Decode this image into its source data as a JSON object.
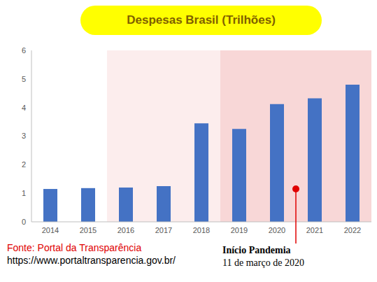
{
  "chart_data": {
    "type": "bar",
    "title": "Despesas Brasil (Trilhões)",
    "categories": [
      "2014",
      "2015",
      "2016",
      "2017",
      "2018",
      "2019",
      "2020",
      "2021",
      "2022"
    ],
    "values": [
      1.15,
      1.18,
      1.2,
      1.25,
      3.45,
      3.25,
      4.12,
      4.32,
      4.8
    ],
    "color": "#4472c4",
    "ylim": [
      0,
      6
    ],
    "yticks": [
      0,
      1,
      2,
      3,
      4,
      5,
      6
    ],
    "grid": false,
    "annotations": [
      "Início Pandemia",
      "11 de março de 2020"
    ],
    "source": "Fonte: Portal da Transparência",
    "source_url": "https://www.portaltransparencia.gov.br/"
  }
}
